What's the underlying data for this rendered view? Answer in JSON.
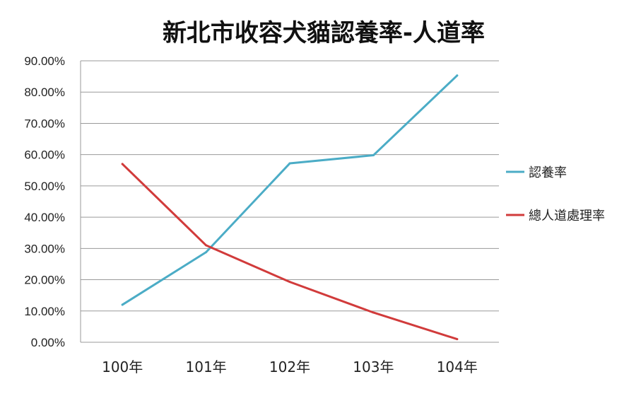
{
  "chart_data": {
    "type": "line",
    "title": "新北市收容犬貓認養率-人道率",
    "categories": [
      "100年",
      "101年",
      "102年",
      "103年",
      "104年"
    ],
    "series": [
      {
        "name": "認養率",
        "color": "#4bacc6",
        "values": [
          12.0,
          28.8,
          57.2,
          59.8,
          85.3
        ]
      },
      {
        "name": "總人道處理率",
        "color": "#d13b3b",
        "values": [
          57.0,
          31.0,
          19.3,
          9.5,
          1.0
        ]
      }
    ],
    "yticks": [
      "0.00%",
      "10.00%",
      "20.00%",
      "30.00%",
      "40.00%",
      "50.00%",
      "60.00%",
      "70.00%",
      "80.00%",
      "90.00%"
    ],
    "ylim": [
      0,
      90
    ],
    "grid": true,
    "legend_position": "right"
  }
}
